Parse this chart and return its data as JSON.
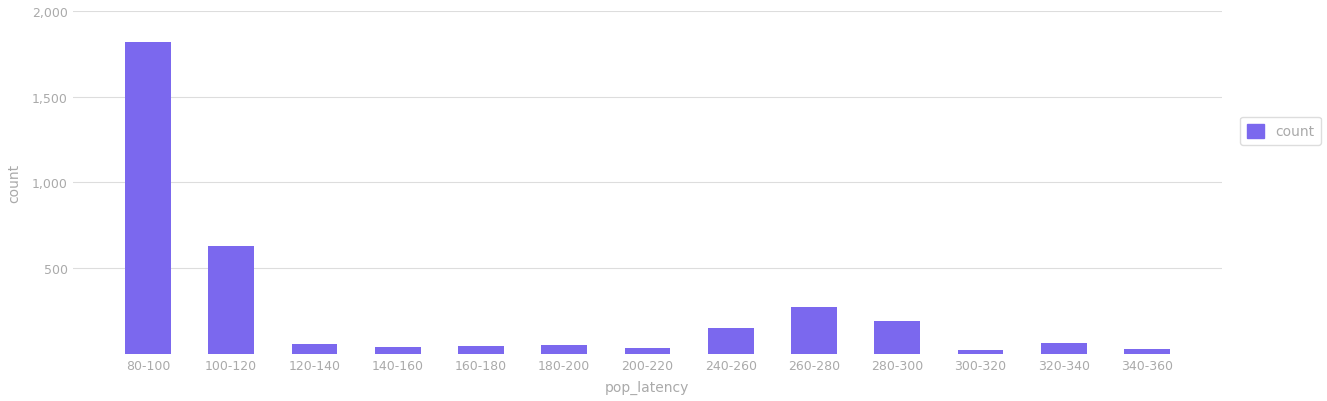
{
  "categories": [
    "80-100",
    "100-120",
    "120-140",
    "140-160",
    "160-180",
    "180-200",
    "200-220",
    "240-260",
    "260-280",
    "280-300",
    "300-320",
    "320-340",
    "340-360"
  ],
  "values": [
    1820,
    630,
    55,
    40,
    45,
    50,
    35,
    150,
    270,
    190,
    20,
    65,
    30
  ],
  "bar_color": "#7B68EE",
  "xlabel": "pop_latency",
  "ylabel": "count",
  "ylim": [
    0,
    2000
  ],
  "yticks": [
    500,
    1000,
    1500,
    2000
  ],
  "ytick_labels": [
    "500",
    "1,000",
    "1,500",
    "2,000"
  ],
  "legend_label": "count",
  "background_color": "#ffffff",
  "grid_color": "#dddddd"
}
